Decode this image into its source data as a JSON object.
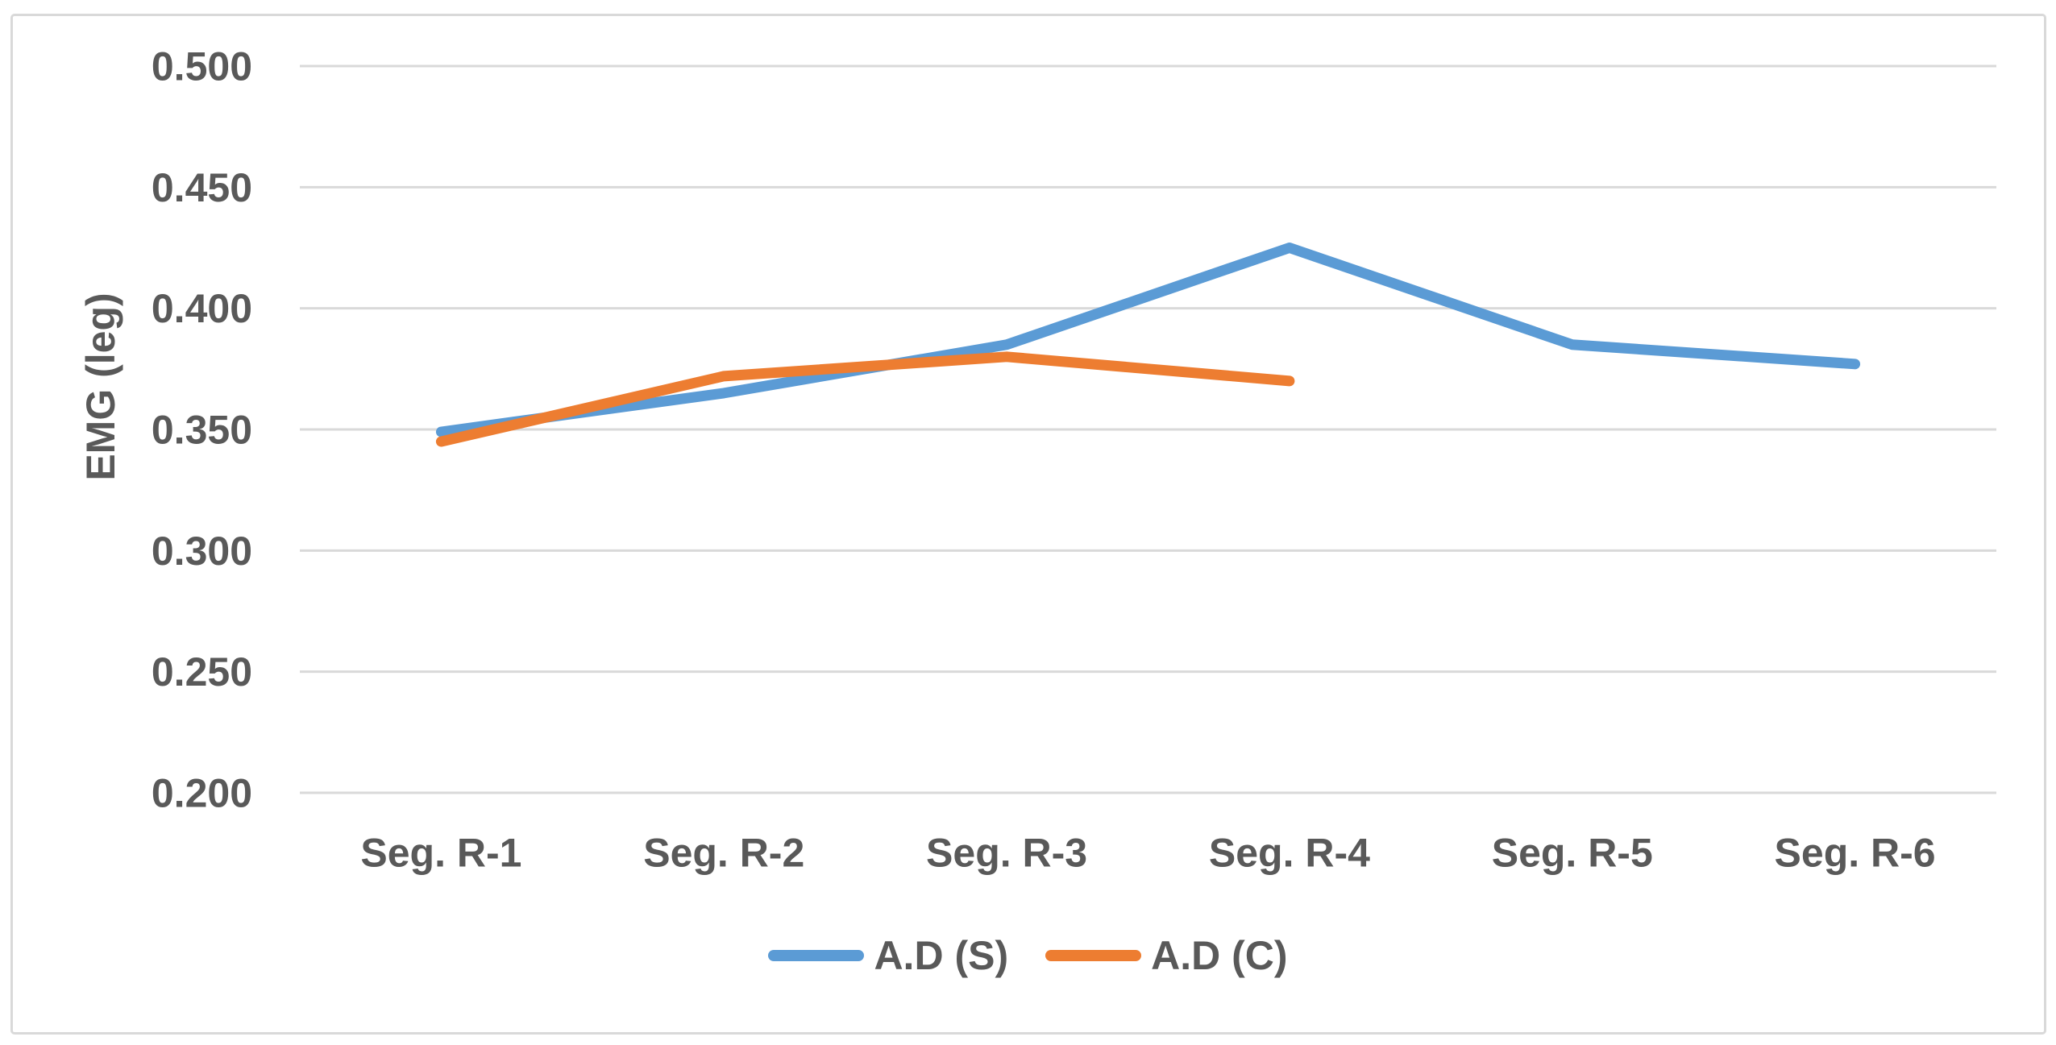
{
  "chart_data": {
    "type": "line",
    "title": "",
    "xlabel": "",
    "ylabel": "EMG (leg)",
    "ylim": [
      0.2,
      0.5
    ],
    "ytick_step": 0.05,
    "yticks": [
      0.5,
      0.45,
      0.4,
      0.35,
      0.3,
      0.25,
      0.2
    ],
    "ytick_labels": [
      "0.500",
      "0.450",
      "0.400",
      "0.350",
      "0.300",
      "0.250",
      "0.200"
    ],
    "categories": [
      "Seg. R-1",
      "Seg. R-2",
      "Seg. R-3",
      "Seg. R-4",
      "Seg. R-5",
      "Seg. R-6"
    ],
    "series": [
      {
        "name": "A.D (S)",
        "color": "#5B9BD5",
        "values": [
          0.349,
          0.365,
          0.385,
          0.425,
          0.385,
          0.377
        ]
      },
      {
        "name": "A.D (C)",
        "color": "#ED7D31",
        "values": [
          0.345,
          0.372,
          0.38,
          0.37,
          null,
          null
        ]
      }
    ],
    "grid": true,
    "gridlines": "horizontal",
    "legend_position": "bottom-center"
  },
  "colors": {
    "background": "#FFFFFF",
    "axis_text": "#595959",
    "gridline": "#D9D9D9",
    "figure_border": "#D9D9D9",
    "series_blue": "#5B9BD5",
    "series_orange": "#ED7D31"
  }
}
